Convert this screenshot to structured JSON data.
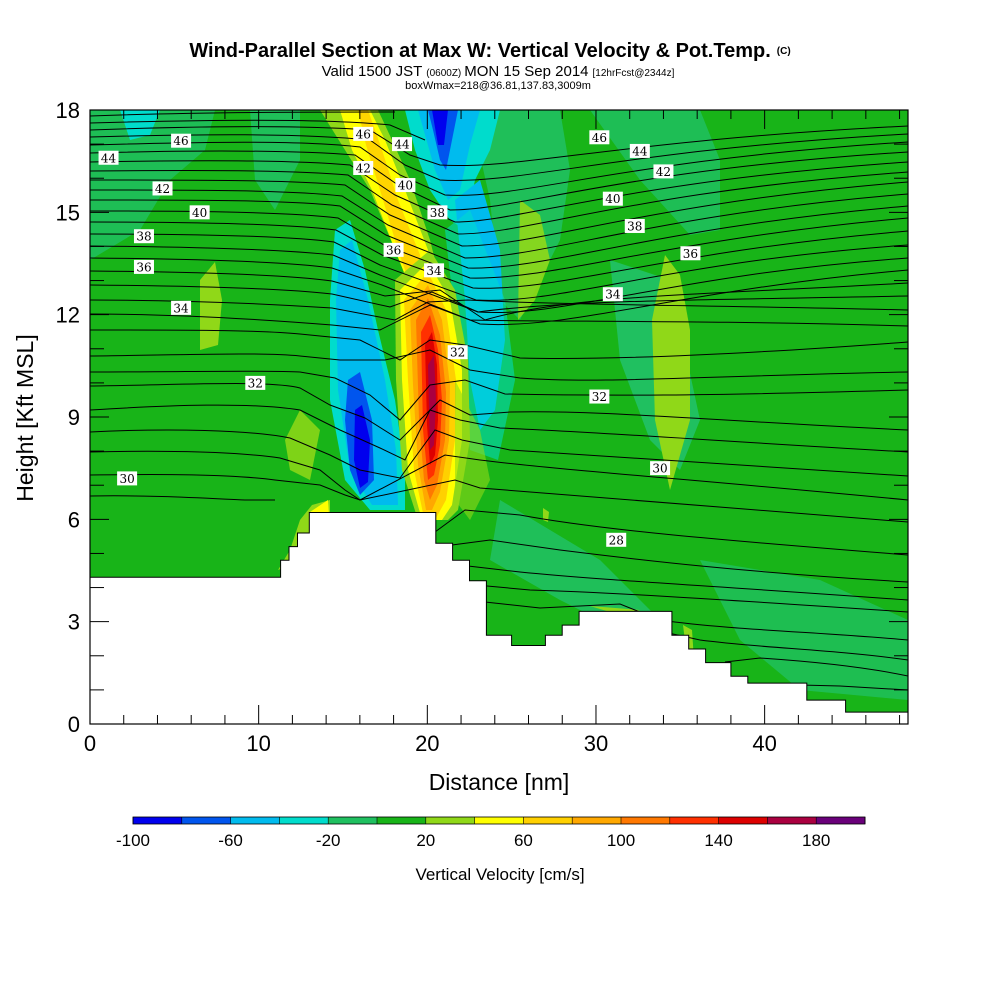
{
  "title": {
    "main": "Wind-Parallel Section at Max W: Vertical Velocity & Pot.Temp.",
    "main_suffix": "(C)",
    "line2_pre": "Valid 1500 JST",
    "line2_small1": "(0600Z)",
    "line2_mid": "MON 15 Sep 2014",
    "line2_small2": "[12hrFcst@2344z]",
    "line3": "boxWmax=218@36.81,137.83,3009m"
  },
  "chart_data": {
    "type": "heatmap",
    "xlabel": "Distance [nm]",
    "ylabel": "Height [Kft MSL]",
    "xlim": [
      0,
      48.5
    ],
    "ylim": [
      0,
      18
    ],
    "x_ticks": [
      0,
      10,
      20,
      30,
      40
    ],
    "x_minor_ticks": [
      2,
      4,
      6,
      8,
      12,
      14,
      16,
      18,
      22,
      24,
      26,
      28,
      32,
      34,
      36,
      38,
      42,
      44,
      46,
      48
    ],
    "y_ticks": [
      0,
      3,
      6,
      9,
      12,
      15,
      18
    ],
    "y_minor_ticks": [
      1,
      2,
      4,
      5,
      7,
      8,
      10,
      11,
      13,
      14,
      16,
      17
    ],
    "background_wind_speed_class": 0,
    "colorbar": {
      "title": "Vertical Velocity [cm/s]",
      "tick_labels": [
        "-100",
        "-60",
        "-20",
        "20",
        "60",
        "100",
        "140",
        "180"
      ],
      "levels": [
        -100,
        -80,
        -60,
        -40,
        -20,
        0,
        20,
        40,
        60,
        80,
        100,
        120,
        140,
        160,
        180,
        200
      ],
      "colors": [
        "#0000ee",
        "#0055ee",
        "#00bbee",
        "#00dccc",
        "#20c060",
        "#18b418",
        "#90d818",
        "#ffff00",
        "#ffd000",
        "#ffa800",
        "#ff7800",
        "#ff3000",
        "#dd0000",
        "#aa0040",
        "#6a007a"
      ]
    },
    "terrain_kft": [
      [
        0,
        4.3
      ],
      [
        10.8,
        4.3
      ],
      [
        11.3,
        4.8
      ],
      [
        11.8,
        5.2
      ],
      [
        12.3,
        5.6
      ],
      [
        13.0,
        6.2
      ],
      [
        19.5,
        6.2
      ],
      [
        20.5,
        5.3
      ],
      [
        21.5,
        4.8
      ],
      [
        22.5,
        4.2
      ],
      [
        23.5,
        2.6
      ],
      [
        25.0,
        2.3
      ],
      [
        27.0,
        2.6
      ],
      [
        28.0,
        2.9
      ],
      [
        29.0,
        3.3
      ],
      [
        33.5,
        3.3
      ],
      [
        34.5,
        2.6
      ],
      [
        35.5,
        2.2
      ],
      [
        36.5,
        1.8
      ],
      [
        38.0,
        1.4
      ],
      [
        39.0,
        1.2
      ],
      [
        41.0,
        1.2
      ],
      [
        42.5,
        0.7
      ],
      [
        44.0,
        0.7
      ],
      [
        44.8,
        0.35
      ],
      [
        48.5,
        0.35
      ]
    ],
    "vertical_velocity_features": [
      {
        "name": "updraft-core",
        "x_center": 20.5,
        "y_bottom": 6.2,
        "y_top": 12.5,
        "peak_cm_s": 218
      },
      {
        "name": "downdraft-left",
        "x_center": 16.2,
        "y_bottom": 6.5,
        "y_top": 13.6,
        "min_cm_s": -95
      },
      {
        "name": "downdraft-upper",
        "x_center": 20.8,
        "y_bottom": 15.5,
        "y_top": 18,
        "min_cm_s": -100
      }
    ],
    "potential_temperature_contours": [
      {
        "label": "30",
        "y_left": 7.0,
        "y_right": 3.5
      },
      {
        "label": "32",
        "y_left": 9.9,
        "y_right": 8.0
      },
      {
        "label": "34",
        "y_left": 12.2,
        "y_right": 12.4
      },
      {
        "label": "36",
        "y_left": 13.4,
        "y_right": 13.8
      },
      {
        "label": "38",
        "y_left": 14.3,
        "y_right": 15.0
      },
      {
        "label": "40",
        "y_left": 15.0,
        "y_right": 15.6
      },
      {
        "label": "42",
        "y_left": 15.7,
        "y_right": 16.3
      },
      {
        "label": "44",
        "y_left": 16.5,
        "y_right": 17.0
      },
      {
        "label": "46",
        "y_left": 17.1,
        "y_right": 17.6
      },
      {
        "label": "28",
        "y_left": 5.2,
        "y_right": 2.0
      }
    ],
    "contour_labels": [
      {
        "text": "44",
        "x": 1.1,
        "y": 16.6
      },
      {
        "text": "46",
        "x": 5.4,
        "y": 17.1
      },
      {
        "text": "42",
        "x": 4.3,
        "y": 15.7
      },
      {
        "text": "40",
        "x": 6.5,
        "y": 15.0
      },
      {
        "text": "38",
        "x": 3.2,
        "y": 14.3
      },
      {
        "text": "36",
        "x": 3.2,
        "y": 13.4
      },
      {
        "text": "34",
        "x": 5.4,
        "y": 12.2
      },
      {
        "text": "32",
        "x": 9.8,
        "y": 10.0
      },
      {
        "text": "30",
        "x": 2.2,
        "y": 7.2
      },
      {
        "text": "46",
        "x": 16.2,
        "y": 17.3
      },
      {
        "text": "44",
        "x": 18.5,
        "y": 17.0
      },
      {
        "text": "42",
        "x": 16.2,
        "y": 16.3
      },
      {
        "text": "40",
        "x": 18.7,
        "y": 15.8
      },
      {
        "text": "38",
        "x": 20.6,
        "y": 15.0
      },
      {
        "text": "36",
        "x": 18.0,
        "y": 13.9
      },
      {
        "text": "34",
        "x": 20.4,
        "y": 13.3
      },
      {
        "text": "32",
        "x": 21.8,
        "y": 10.9
      },
      {
        "text": "46",
        "x": 30.2,
        "y": 17.2
      },
      {
        "text": "44",
        "x": 32.6,
        "y": 16.8
      },
      {
        "text": "42",
        "x": 34.0,
        "y": 16.2
      },
      {
        "text": "40",
        "x": 31.0,
        "y": 15.4
      },
      {
        "text": "38",
        "x": 32.3,
        "y": 14.6
      },
      {
        "text": "36",
        "x": 35.6,
        "y": 13.8
      },
      {
        "text": "34",
        "x": 31.0,
        "y": 12.6
      },
      {
        "text": "32",
        "x": 30.2,
        "y": 9.6
      },
      {
        "text": "30",
        "x": 33.8,
        "y": 7.5
      },
      {
        "text": "28",
        "x": 31.2,
        "y": 5.4
      }
    ]
  }
}
